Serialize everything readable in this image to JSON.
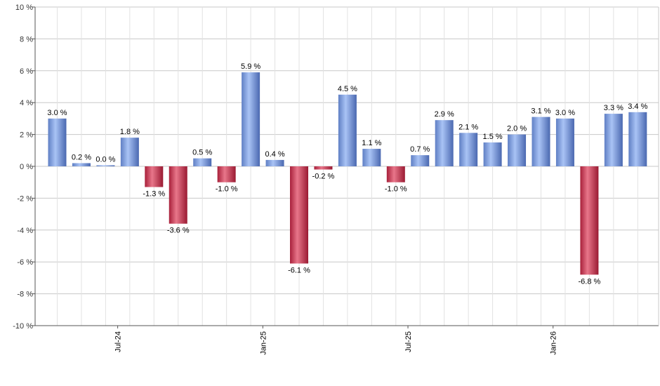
{
  "chart_data": {
    "type": "bar",
    "categories": [
      "",
      "",
      "",
      "",
      "",
      "",
      "",
      "",
      "",
      "",
      "",
      "",
      "",
      "",
      "",
      "",
      "",
      "",
      "",
      "",
      "",
      "",
      "",
      "",
      ""
    ],
    "values": [
      3.0,
      0.2,
      0.0,
      1.8,
      -1.3,
      -3.6,
      0.5,
      -1.0,
      5.9,
      0.4,
      -6.1,
      -0.2,
      4.5,
      1.1,
      -1.0,
      0.7,
      2.9,
      2.1,
      1.5,
      2.0,
      3.1,
      3.0,
      -6.8,
      3.3,
      3.4
    ],
    "data_labels": [
      "3.0 %",
      "0.2 %",
      "0.0 %",
      "1.8 %",
      "-1.3 %",
      "-3.6 %",
      "0.5 %",
      "-1.0 %",
      "5.9 %",
      "0.4 %",
      "-6.1 %",
      "-0.2 %",
      "4.5 %",
      "1.1 %",
      "-1.0 %",
      "0.7 %",
      "2.9 %",
      "2.1 %",
      "1.5 %",
      "2.0 %",
      "3.1 %",
      "3.0 %",
      "-6.8 %",
      "3.3 %",
      "3.4 %"
    ],
    "x_ticks": [
      {
        "index": 2.5,
        "label": "Jul-24"
      },
      {
        "index": 8.5,
        "label": "Jan-25"
      },
      {
        "index": 14.5,
        "label": "Jul-25"
      },
      {
        "index": 20.5,
        "label": "Jan-26"
      }
    ],
    "y_ticks": [
      {
        "value": 10,
        "label": "10 %"
      },
      {
        "value": 8,
        "label": "8 %"
      },
      {
        "value": 6,
        "label": "6 %"
      },
      {
        "value": 4,
        "label": "4 %"
      },
      {
        "value": 2,
        "label": "2 %"
      },
      {
        "value": 0,
        "label": "0 %"
      },
      {
        "value": -2,
        "label": "-2 %"
      },
      {
        "value": -4,
        "label": "-4 %"
      },
      {
        "value": -6,
        "label": "-6 %"
      },
      {
        "value": -8,
        "label": "-8 %"
      },
      {
        "value": -10,
        "label": "-10 %"
      }
    ],
    "ylim": [
      -10,
      10
    ],
    "grid": true,
    "title": "",
    "xlabel": "",
    "ylabel": "",
    "colors": {
      "positive": "#7d9fe0",
      "negative": "#c8324f",
      "grid": "#c8c8c8",
      "axis": "#555555"
    }
  }
}
